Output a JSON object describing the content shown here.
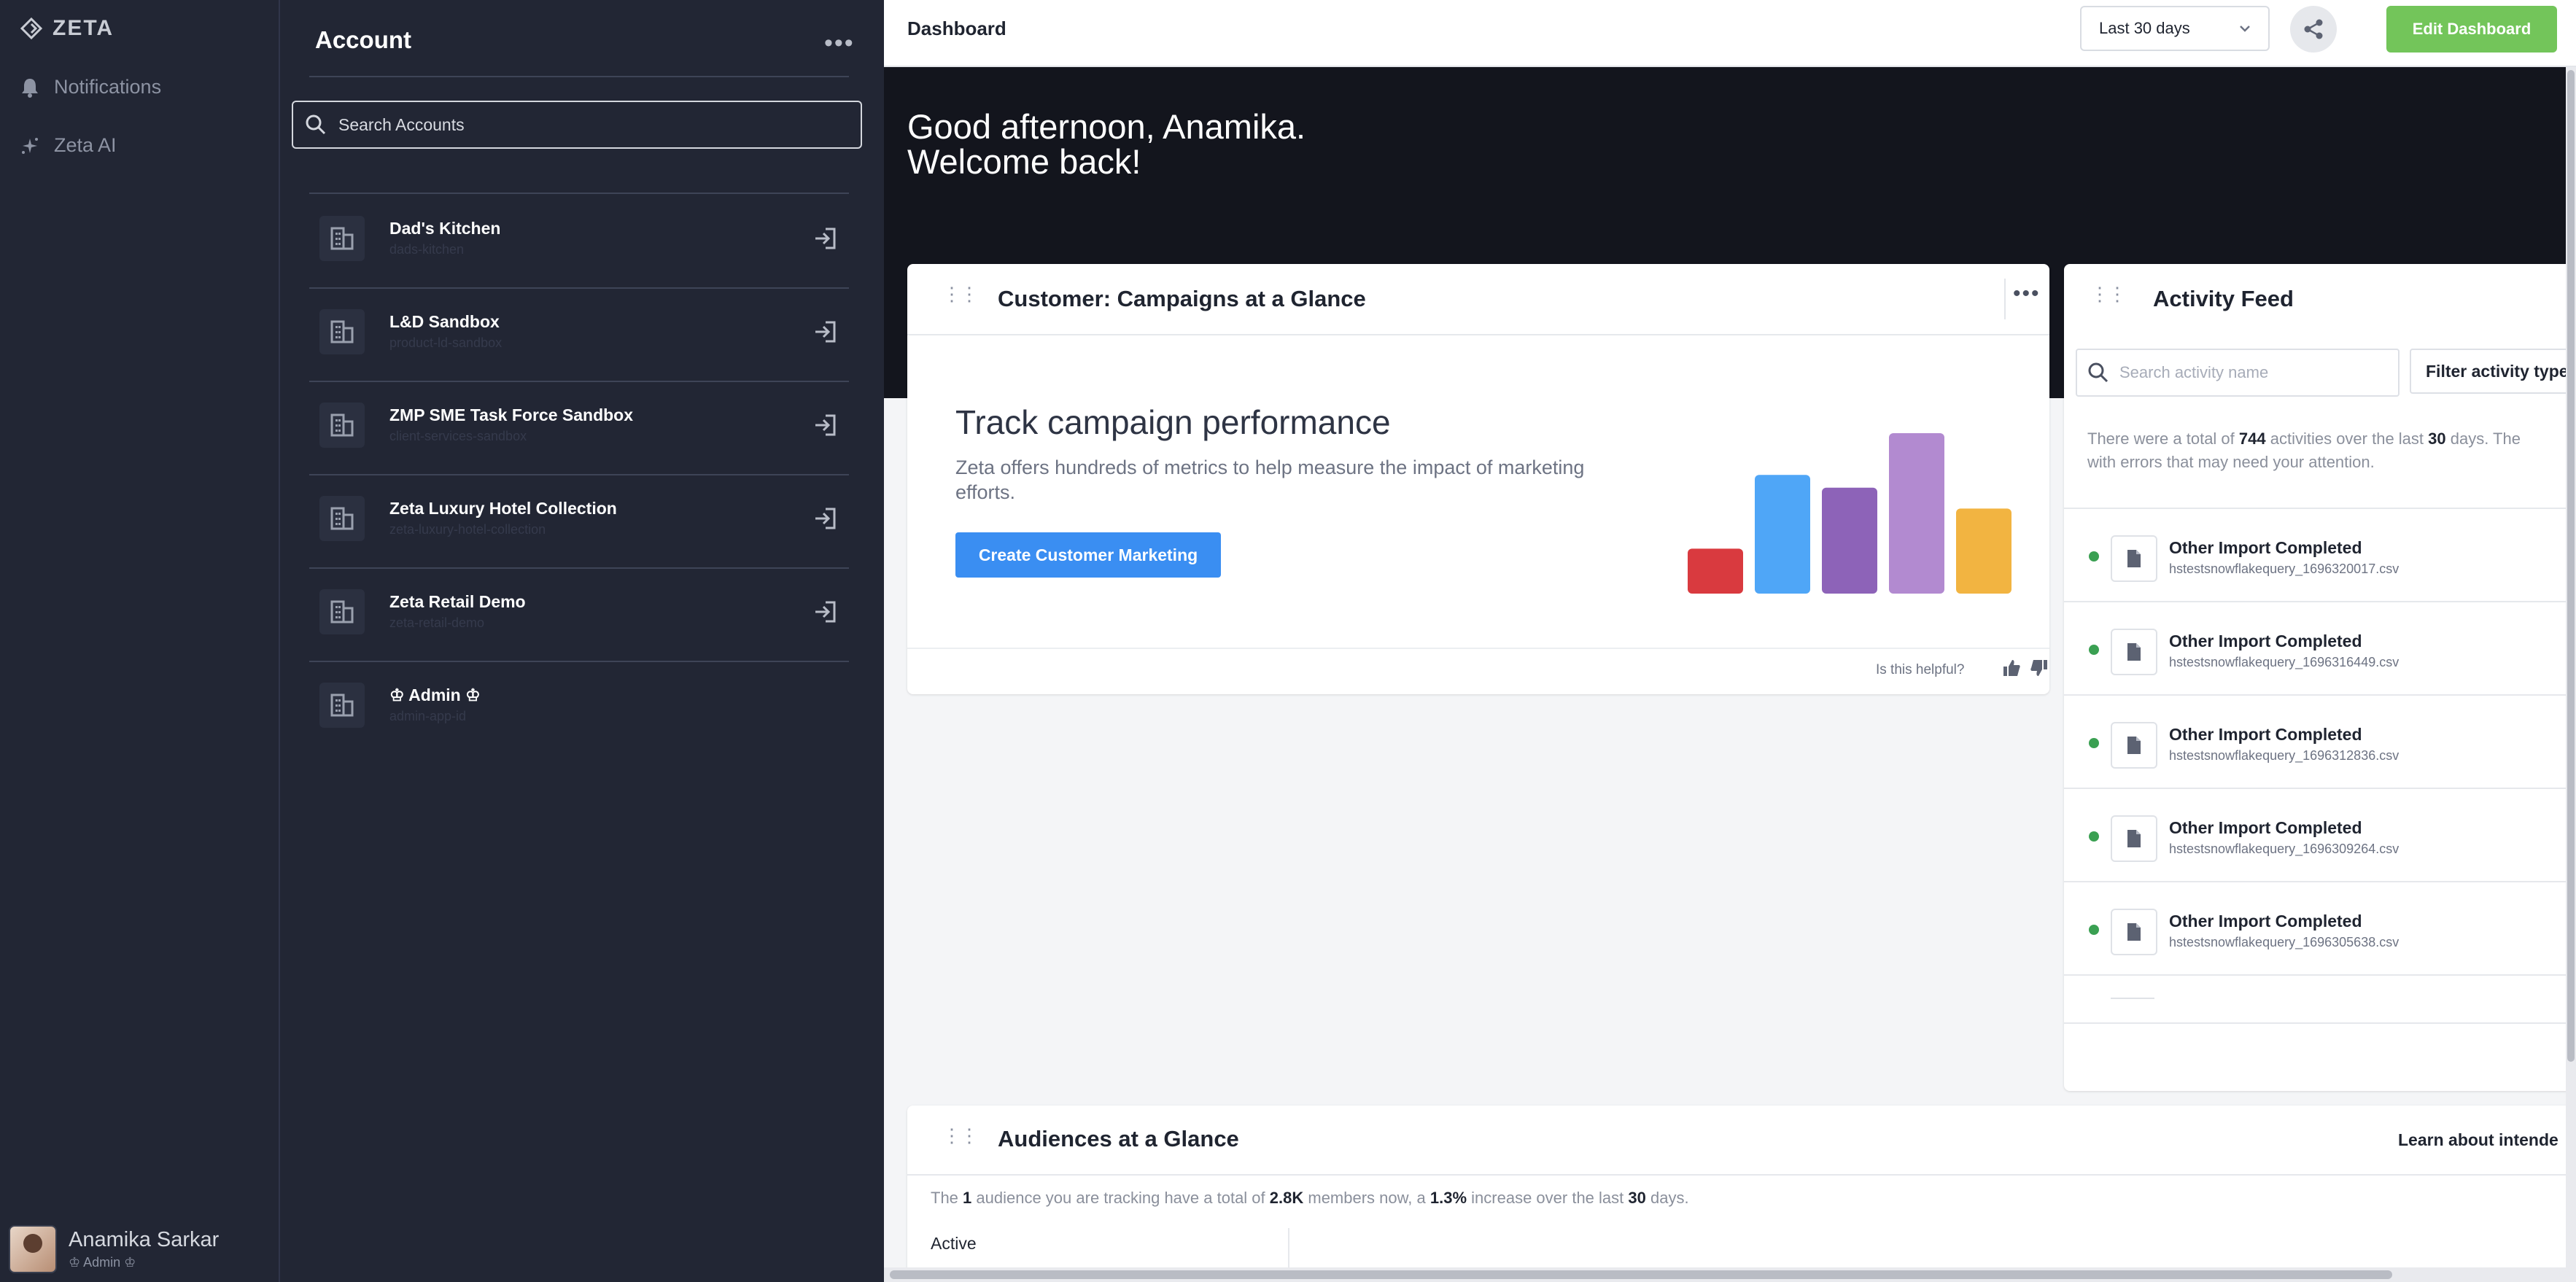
{
  "nav": {
    "logo": "ZETA",
    "items": [
      {
        "label": "Notifications",
        "icon": "bell-icon"
      },
      {
        "label": "Zeta AI",
        "icon": "sparkle-icon"
      }
    ],
    "user": {
      "name": "Anamika Sarkar",
      "role": "♔ Admin ♔"
    }
  },
  "account_panel": {
    "title": "Account",
    "search_placeholder": "Search Accounts",
    "accounts": [
      {
        "name": "Dad's Kitchen",
        "sub": "dads-kitchen"
      },
      {
        "name": "L&D Sandbox",
        "sub": "product-ld-sandbox"
      },
      {
        "name": "ZMP SME Task Force Sandbox",
        "sub": "client-services-sandbox"
      },
      {
        "name": "Zeta Luxury Hotel Collection",
        "sub": "zeta-luxury-hotel-collection"
      },
      {
        "name": "Zeta Retail Demo",
        "sub": "zeta-retail-demo"
      },
      {
        "name": "♔ Admin ♔",
        "sub": "admin-app-id"
      }
    ]
  },
  "topbar": {
    "title": "Dashboard",
    "date_range": "Last 30 days",
    "edit_label": "Edit Dashboard"
  },
  "hero": {
    "line1": "Good afternoon, Anamika.",
    "line2": "Welcome back!"
  },
  "campaigns_card": {
    "title": "Customer: Campaigns at a Glance",
    "heading": "Track campaign performance",
    "description": "Zeta offers hundreds of metrics to help measure the impact of marketing efforts.",
    "cta_label": "Create Customer Marketing",
    "helpful_label": "Is this helpful?",
    "illustration_bars": [
      {
        "value": 0.28,
        "color": "#d93a3f"
      },
      {
        "value": 0.74,
        "color": "#4fa6f7"
      },
      {
        "value": 0.66,
        "color": "#8d63b8"
      },
      {
        "value": 1.0,
        "color": "#b28ad0"
      },
      {
        "value": 0.53,
        "color": "#f2b441"
      }
    ]
  },
  "activity_feed": {
    "title": "Activity Feed",
    "search_placeholder": "Search activity name",
    "filter_label": "Filter activity type",
    "summary": {
      "p1": "There were a total of ",
      "count": "744",
      "p2": " activities over the last ",
      "days": "30",
      "p3": " days. The",
      "line2": "with errors that may need your attention."
    },
    "items": [
      {
        "title": "Other Import Completed",
        "file": "hstestsnowflakequery_1696320017.csv"
      },
      {
        "title": "Other Import Completed",
        "file": "hstestsnowflakequery_1696316449.csv"
      },
      {
        "title": "Other Import Completed",
        "file": "hstestsnowflakequery_1696312836.csv"
      },
      {
        "title": "Other Import Completed",
        "file": "hstestsnowflakequery_1696309264.csv"
      },
      {
        "title": "Other Import Completed",
        "file": "hstestsnowflakequery_1696305638.csv"
      }
    ]
  },
  "audiences_card": {
    "title": "Audiences at a Glance",
    "learn_label": "Learn about intende",
    "summary": {
      "p1": "The ",
      "count": "1",
      "p2": " audience you are tracking have a total of ",
      "members": "2.8K",
      "p3": " members now, a ",
      "pct": "1.3%",
      "p4": " increase over the last ",
      "days": "30",
      "p5": " days."
    },
    "col_header": "Active"
  }
}
